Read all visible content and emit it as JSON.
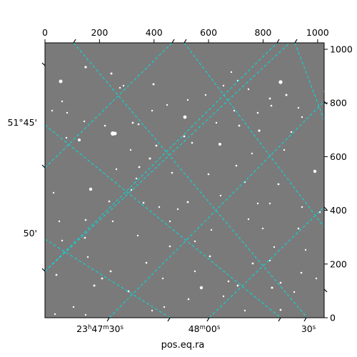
{
  "chart_data": {
    "type": "scatter",
    "title": "",
    "xlabel": "pos.eq.ra",
    "ylabel": "",
    "pixel_axes": {
      "x_ticks": [
        0,
        200,
        400,
        600,
        800,
        1000
      ],
      "y_ticks": [
        0,
        200,
        400,
        600,
        800,
        1000
      ],
      "xlim": [
        0,
        1024
      ],
      "ylim": [
        0,
        1024
      ]
    },
    "world_axes": {
      "ra_tick_labels": [
        {
          "h": "23",
          "m": "47",
          "s": "30"
        },
        {
          "h": "",
          "m": "48",
          "s": "00"
        },
        {
          "h": "",
          "m": "",
          "s": "30"
        }
      ],
      "dec_tick_labels": [
        "51°45'",
        "50'"
      ]
    },
    "grid": true,
    "grid_color": "#00e0e0",
    "image_colormap": "gray",
    "stars": [
      [
        22,
        54,
        2.5
      ],
      [
        57,
        34,
        1.6
      ],
      [
        93,
        43,
        1.5
      ],
      [
        152,
        58,
        1.5
      ],
      [
        171,
        87,
        1.2
      ],
      [
        196,
        104,
        2.4
      ],
      [
        245,
        142,
        2.0
      ],
      [
        272,
        116,
        1.4
      ],
      [
        298,
        98,
        1.3
      ],
      [
        315,
        78,
        1.4
      ],
      [
        338,
        73,
        1.5
      ],
      [
        392,
        68,
        2.0
      ],
      [
        355,
        91,
        1.2
      ],
      [
        300,
        123,
        1.6
      ],
      [
        378,
        180,
        2.2
      ],
      [
        327,
        198,
        1.4
      ],
      [
        268,
        172,
        1.3
      ],
      [
        229,
        184,
        1.3
      ],
      [
        200,
        223,
        1.4
      ],
      [
        132,
        174,
        1.4
      ],
      [
        121,
        206,
        1.2
      ],
      [
        100,
        177,
        1.2
      ],
      [
        90,
        222,
        1.3
      ],
      [
        64,
        205,
        2.2
      ],
      [
        57,
        248,
        1.3
      ],
      [
        24,
        277,
        1.2
      ],
      [
        16,
        325,
        1.4
      ],
      [
        56,
        273,
        1.3
      ],
      [
        92,
        320,
        1.4
      ],
      [
        142,
        308,
        1.3
      ],
      [
        175,
        285,
        1.3
      ],
      [
        210,
        278,
        1.2
      ],
      [
        231,
        299,
        1.4
      ],
      [
        219,
        343,
        2.2
      ],
      [
        201,
        359,
        1.3
      ],
      [
        250,
        355,
        1.2
      ],
      [
        270,
        340,
        1.4
      ],
      [
        321,
        286,
        1.2
      ],
      [
        355,
        260,
        1.3
      ],
      [
        385,
        237,
        1.3
      ],
      [
        359,
        322,
        1.3
      ],
      [
        318,
        343,
        1.5
      ],
      [
        330,
        374,
        1.4
      ],
      [
        349,
        349,
        1.2
      ],
      [
        374,
        389,
        1.3
      ],
      [
        330,
        336,
        1.3
      ],
      [
        291,
        309,
        1.4
      ],
      [
        257,
        334,
        1.3
      ],
      [
        235,
        405,
        1.3
      ],
      [
        117,
        348,
        1.3
      ],
      [
        80,
        330,
        1.4
      ],
      [
        69,
        340,
        1.5
      ],
      [
        57,
        381,
        1.2
      ],
      [
        37,
        404,
        1.2
      ],
      [
        117,
        348,
        1.2
      ],
      [
        95,
        127,
        3.0
      ],
      [
        98,
        127,
        2.5
      ],
      [
        84,
        116,
        1.3
      ],
      [
        123,
        112,
        1.4
      ],
      [
        131,
        114,
        1.3
      ],
      [
        156,
        144,
        1.4
      ],
      [
        147,
        162,
        1.5
      ],
      [
        195,
        131,
        1.4
      ],
      [
        48,
        136,
        2.0
      ],
      [
        31,
        98,
        1.2
      ],
      [
        30,
        133,
        1.2
      ],
      [
        105,
        63,
        1.2
      ],
      [
        225,
        73,
        1.2
      ],
      [
        261,
        41,
        1.2
      ],
      [
        270,
        53,
        1.2
      ],
      [
        317,
        88,
        1.3
      ],
      [
        200,
        80,
        1.2
      ],
      [
        128,
        190,
        1.2
      ],
      [
        138,
        224,
        1.3
      ],
      [
        178,
        182,
        1.3
      ],
      [
        246,
        214,
        1.2
      ],
      [
        285,
        247,
        1.2
      ],
      [
        298,
        225,
        1.2
      ],
      [
        335,
        150,
        1.2
      ],
      [
        345,
        125,
        1.2
      ],
      [
        360,
        104,
        1.2
      ],
      [
        233,
        262,
        1.2
      ],
      [
        300,
        396,
        1.3
      ],
      [
        320,
        395,
        1.2
      ],
      [
        344,
        392,
        1.3
      ],
      [
        185,
        402,
        1.2
      ],
      [
        167,
        370,
        1.2
      ],
      [
        150,
        375,
        1.2
      ],
      [
        80,
        400,
        1.2
      ],
      [
        40,
        370,
        1.2
      ],
      [
        110,
        60,
        1.2
      ],
      [
        24,
        82,
        1.2
      ],
      [
        160,
        230,
        1.2
      ],
      [
        206,
        140,
        1.3
      ],
      [
        55,
        110,
        1.2
      ],
      [
        120,
        150,
        1.2
      ],
      [
        280,
        195,
        1.2
      ],
      [
        315,
        225,
        1.2
      ],
      [
        365,
        290,
        1.2
      ],
      [
        380,
        330,
        1.2
      ],
      [
        290,
        155,
        1.2
      ],
      [
        265,
        95,
        1.2
      ],
      [
        240,
        112,
        1.2
      ],
      [
        150,
        95,
        1.2
      ],
      [
        250,
        60,
        1.2
      ],
      [
        186,
        233,
        1.2
      ],
      [
        210,
        320,
        1.2
      ],
      [
        305,
        260,
        1.2
      ],
      [
        165,
        330,
        1.2
      ],
      [
        95,
        250,
        1.2
      ],
      [
        60,
        300,
        1.2
      ],
      [
        130,
        270,
        1.2
      ],
      [
        175,
        250,
        1.2
      ],
      [
        330,
        55,
        2.6
      ],
      [
        10,
        95,
        1.2
      ],
      [
        12,
        210,
        1.2
      ],
      [
        20,
        250,
        1.2
      ],
      [
        14,
        380,
        1.2
      ],
      [
        60,
        395,
        1.2
      ],
      [
        280,
        375,
        1.2
      ],
      [
        315,
        305,
        1.2
      ],
      [
        360,
        230,
        1.2
      ],
      [
        285,
        65,
        1.2
      ]
    ]
  }
}
